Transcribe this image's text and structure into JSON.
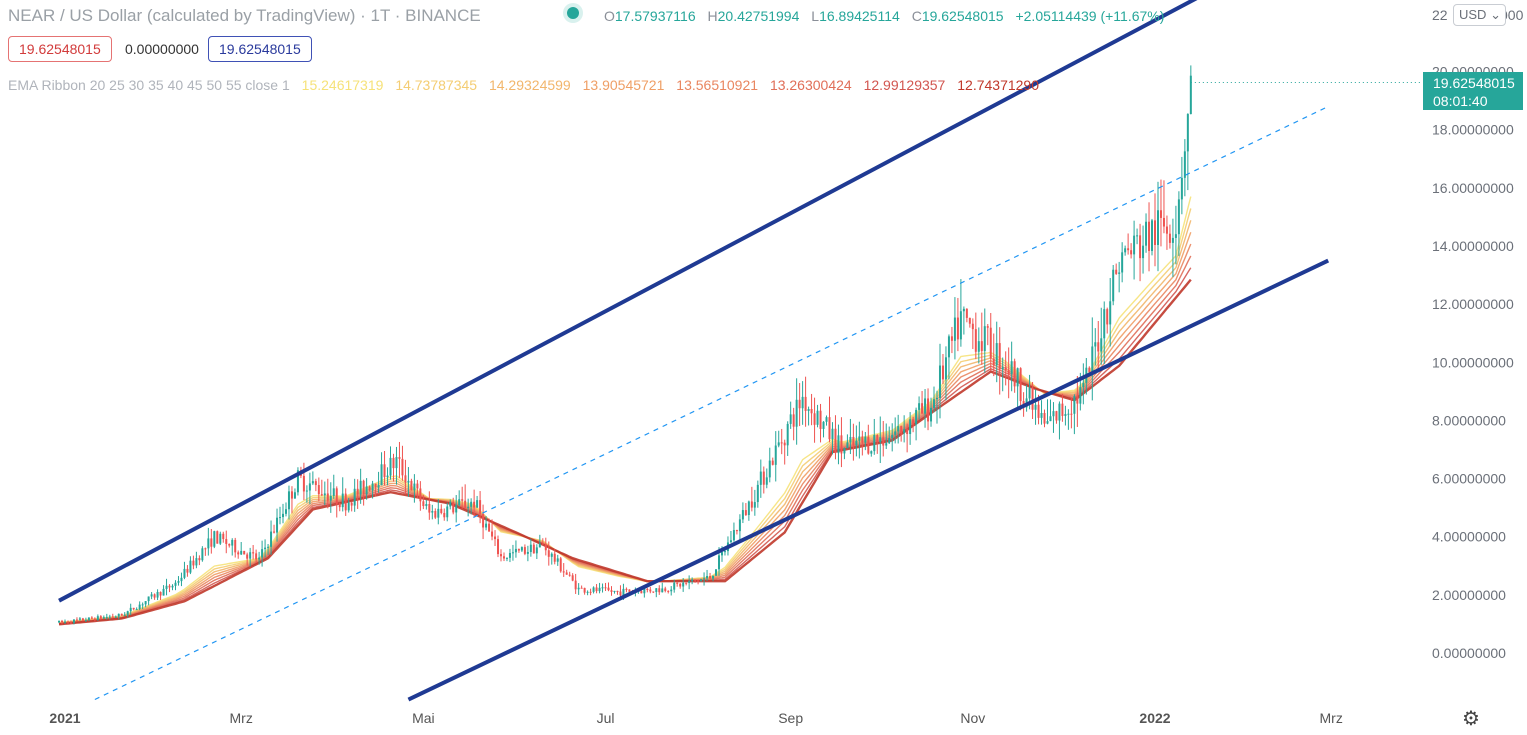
{
  "header": {
    "title": "NEAR / US Dollar (calculated by TradingView) · 1T · BINANCE",
    "ohlc": [
      {
        "key": "O",
        "value": "17.57937116"
      },
      {
        "key": "H",
        "value": "20.42751994"
      },
      {
        "key": "L",
        "value": "16.89425114"
      },
      {
        "key": "C",
        "value": "19.62548015"
      },
      {
        "key": "",
        "value": "+2.05114439 (+11.67%)"
      }
    ],
    "boxes": {
      "bid": "19.62548015",
      "spread": "0.00000000",
      "ask": "19.62548015"
    },
    "ema_label": "EMA Ribbon 20 25 30 35 40 45 50 55 close 1",
    "ema_values": [
      "15.24617319",
      "14.73787345",
      "14.29324599",
      "13.90545721",
      "13.56510921",
      "13.26300424",
      "12.99129357",
      "12.74371290"
    ]
  },
  "price_scale": {
    "currency": "USD",
    "top_tick": "22",
    "top_tick_suffix": "000",
    "last_price": "19.62548015",
    "countdown": "08:01:40"
  },
  "colors": {
    "up": "#26a69a",
    "down": "#ef5350",
    "channel": "#1f3a93",
    "midline": "#2196f3",
    "ribbon": [
      "#f6e27a",
      "#f4cd73",
      "#f2b66c",
      "#ef9f66",
      "#e98660",
      "#e06e58",
      "#d25650",
      "#c0392b"
    ]
  },
  "chart_data": {
    "type": "candlestick",
    "x_ticks": [
      "2021",
      "Mrz",
      "Mai",
      "Jul",
      "Sep",
      "Nov",
      "2022",
      "Mrz"
    ],
    "y_ticks": [
      "0.00000000",
      "2.00000000",
      "4.00000000",
      "6.00000000",
      "8.00000000",
      "10.00000000",
      "12.00000000",
      "14.00000000",
      "16.00000000",
      "18.00000000",
      "20.00000000"
    ],
    "ylim": [
      -2,
      22
    ],
    "close_path": [
      [
        "2020-12-30",
        1.05
      ],
      [
        "2021-01-20",
        1.3
      ],
      [
        "2021-02-07",
        2.4
      ],
      [
        "2021-02-20",
        4.0
      ],
      [
        "2021-03-07",
        3.2
      ],
      [
        "2021-03-20",
        6.0
      ],
      [
        "2021-04-05",
        5.2
      ],
      [
        "2021-04-22",
        6.6
      ],
      [
        "2021-05-03",
        4.8
      ],
      [
        "2021-05-18",
        5.2
      ],
      [
        "2021-05-27",
        3.3
      ],
      [
        "2021-06-10",
        3.7
      ],
      [
        "2021-06-22",
        2.2
      ],
      [
        "2021-07-05",
        2.1
      ],
      [
        "2021-07-20",
        2.2
      ],
      [
        "2021-08-05",
        2.6
      ],
      [
        "2021-08-20",
        5.5
      ],
      [
        "2021-09-05",
        8.8
      ],
      [
        "2021-09-18",
        7.0
      ],
      [
        "2021-10-05",
        7.5
      ],
      [
        "2021-10-18",
        8.5
      ],
      [
        "2021-10-28",
        11.5
      ],
      [
        "2021-11-12",
        10.0
      ],
      [
        "2021-11-25",
        7.8
      ],
      [
        "2021-12-08",
        9.0
      ],
      [
        "2021-12-20",
        13.5
      ],
      [
        "2022-01-01",
        14.5
      ],
      [
        "2022-01-08",
        15.0
      ],
      [
        "2022-01-13",
        19.6
      ]
    ],
    "ema_path": [
      [
        "2020-12-30",
        1.0
      ],
      [
        "2021-01-20",
        1.2
      ],
      [
        "2021-02-10",
        1.8
      ],
      [
        "2021-03-10",
        3.3
      ],
      [
        "2021-03-25",
        5.0
      ],
      [
        "2021-04-20",
        5.6
      ],
      [
        "2021-05-10",
        5.2
      ],
      [
        "2021-06-01",
        4.2
      ],
      [
        "2021-06-20",
        3.3
      ],
      [
        "2021-07-15",
        2.5
      ],
      [
        "2021-08-10",
        2.5
      ],
      [
        "2021-08-30",
        4.2
      ],
      [
        "2021-09-15",
        7.0
      ],
      [
        "2021-10-05",
        7.4
      ],
      [
        "2021-10-20",
        8.5
      ],
      [
        "2021-11-07",
        9.8
      ],
      [
        "2021-11-22",
        9.2
      ],
      [
        "2021-12-05",
        8.8
      ],
      [
        "2021-12-20",
        10.0
      ],
      [
        "2022-01-13",
        13.0
      ]
    ],
    "upper_channel": [
      [
        "2020-12-30",
        1.8
      ],
      [
        "2022-01-20",
        22.8
      ]
    ],
    "lower_channel": [
      [
        "2021-04-26",
        -1.6
      ],
      [
        "2022-02-28",
        13.5
      ]
    ],
    "mid_channel": [
      [
        "2021-01-11",
        -1.6
      ],
      [
        "2022-02-28",
        18.8
      ]
    ],
    "price_line": 19.62548015
  }
}
